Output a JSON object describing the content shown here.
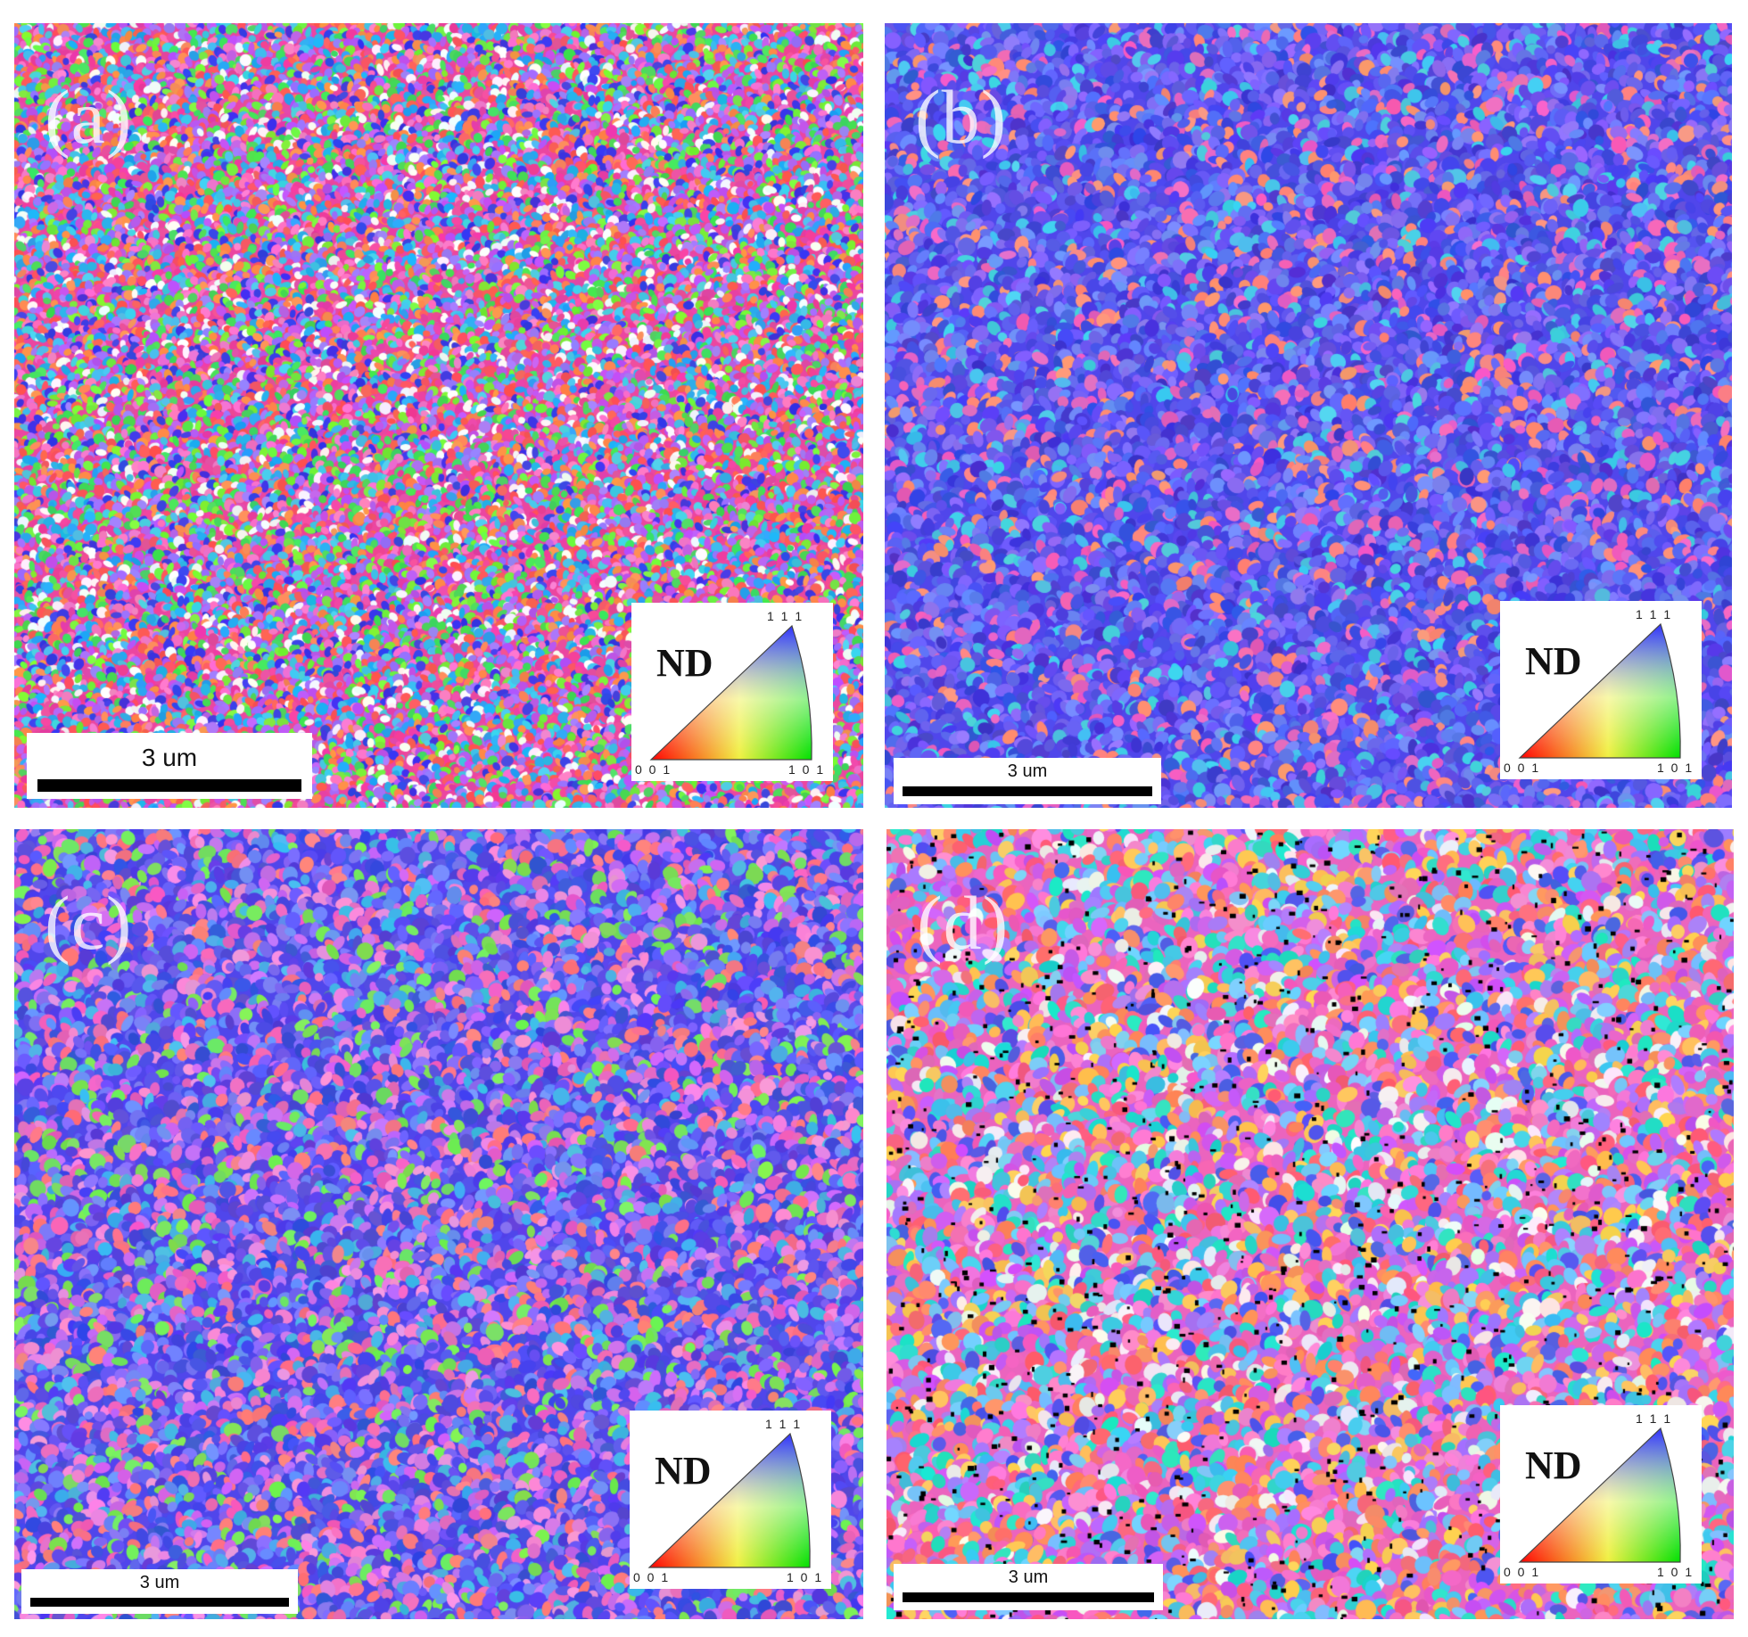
{
  "panels": [
    {
      "label": "(a)",
      "scale_text": "3 um",
      "legend_title": "ND",
      "poles": [
        "1 1 1",
        "0 0 1",
        "1 0 1"
      ],
      "palette": "mixed"
    },
    {
      "label": "(b)",
      "scale_text": "3 um",
      "legend_title": "ND",
      "poles": [
        "1 1 1",
        "0 0 1",
        "1 0 1"
      ],
      "palette": "blue"
    },
    {
      "label": "(c)",
      "scale_text": "3 um",
      "legend_title": "ND",
      "poles": [
        "1 1 1",
        "0 0 1",
        "1 0 1"
      ],
      "palette": "blue-mixed"
    },
    {
      "label": "(d)",
      "scale_text": "3 um",
      "legend_title": "ND",
      "poles": [
        "1 1 1",
        "0 0 1",
        "1 0 1"
      ],
      "palette": "mixed-dark"
    }
  ]
}
